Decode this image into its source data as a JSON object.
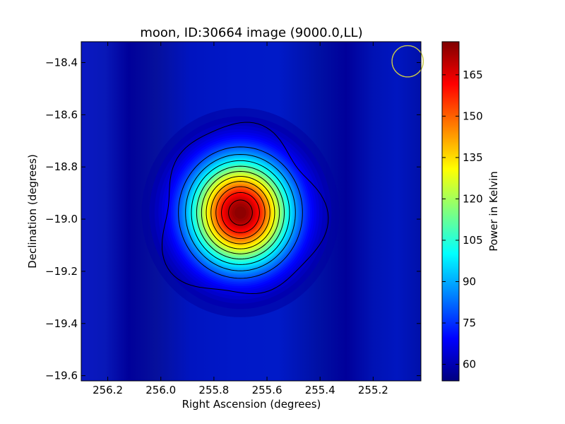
{
  "chart_data": {
    "type": "heatmap",
    "title": "moon, ID:30664 image (9000.0,LL)",
    "xlabel": "Right Ascension (degrees)",
    "ylabel": "Declination (degrees)",
    "x_range": [
      256.3,
      255.02
    ],
    "y_range": [
      -19.62,
      -18.32
    ],
    "x_ticks": [
      256.2,
      256.0,
      255.8,
      255.6,
      255.4,
      255.2
    ],
    "x_tick_labels": [
      "256.2",
      "256.0",
      "255.8",
      "255.6",
      "255.4",
      "255.2"
    ],
    "y_ticks": [
      -18.4,
      -18.6,
      -18.8,
      -19.0,
      -19.2,
      -19.4,
      -19.6
    ],
    "y_tick_labels": [
      "−18.4",
      "−18.6",
      "−18.8",
      "−19.0",
      "−19.2",
      "−19.4",
      "−19.6"
    ],
    "colorbar": {
      "label": "Power in Kelvin",
      "range": [
        54,
        177
      ],
      "ticks": [
        60,
        75,
        90,
        105,
        120,
        135,
        150,
        165
      ],
      "tick_labels": [
        "60",
        "75",
        "90",
        "105",
        "120",
        "135",
        "150",
        "165"
      ],
      "colormap": "jet"
    },
    "source": {
      "center_ra": 255.7,
      "center_dec": -18.975,
      "peak_kelvin": 177,
      "background_kelvin": 56,
      "sigma_ra_deg": 0.13,
      "sigma_dec_deg": 0.14
    },
    "contour_levels": [
      70,
      80,
      90,
      100,
      110,
      120,
      130,
      140,
      150,
      160,
      170
    ],
    "beam_marker": {
      "ra": 255.07,
      "dec": -18.395,
      "radius_deg": 0.06,
      "color": "#c8c84a"
    }
  }
}
